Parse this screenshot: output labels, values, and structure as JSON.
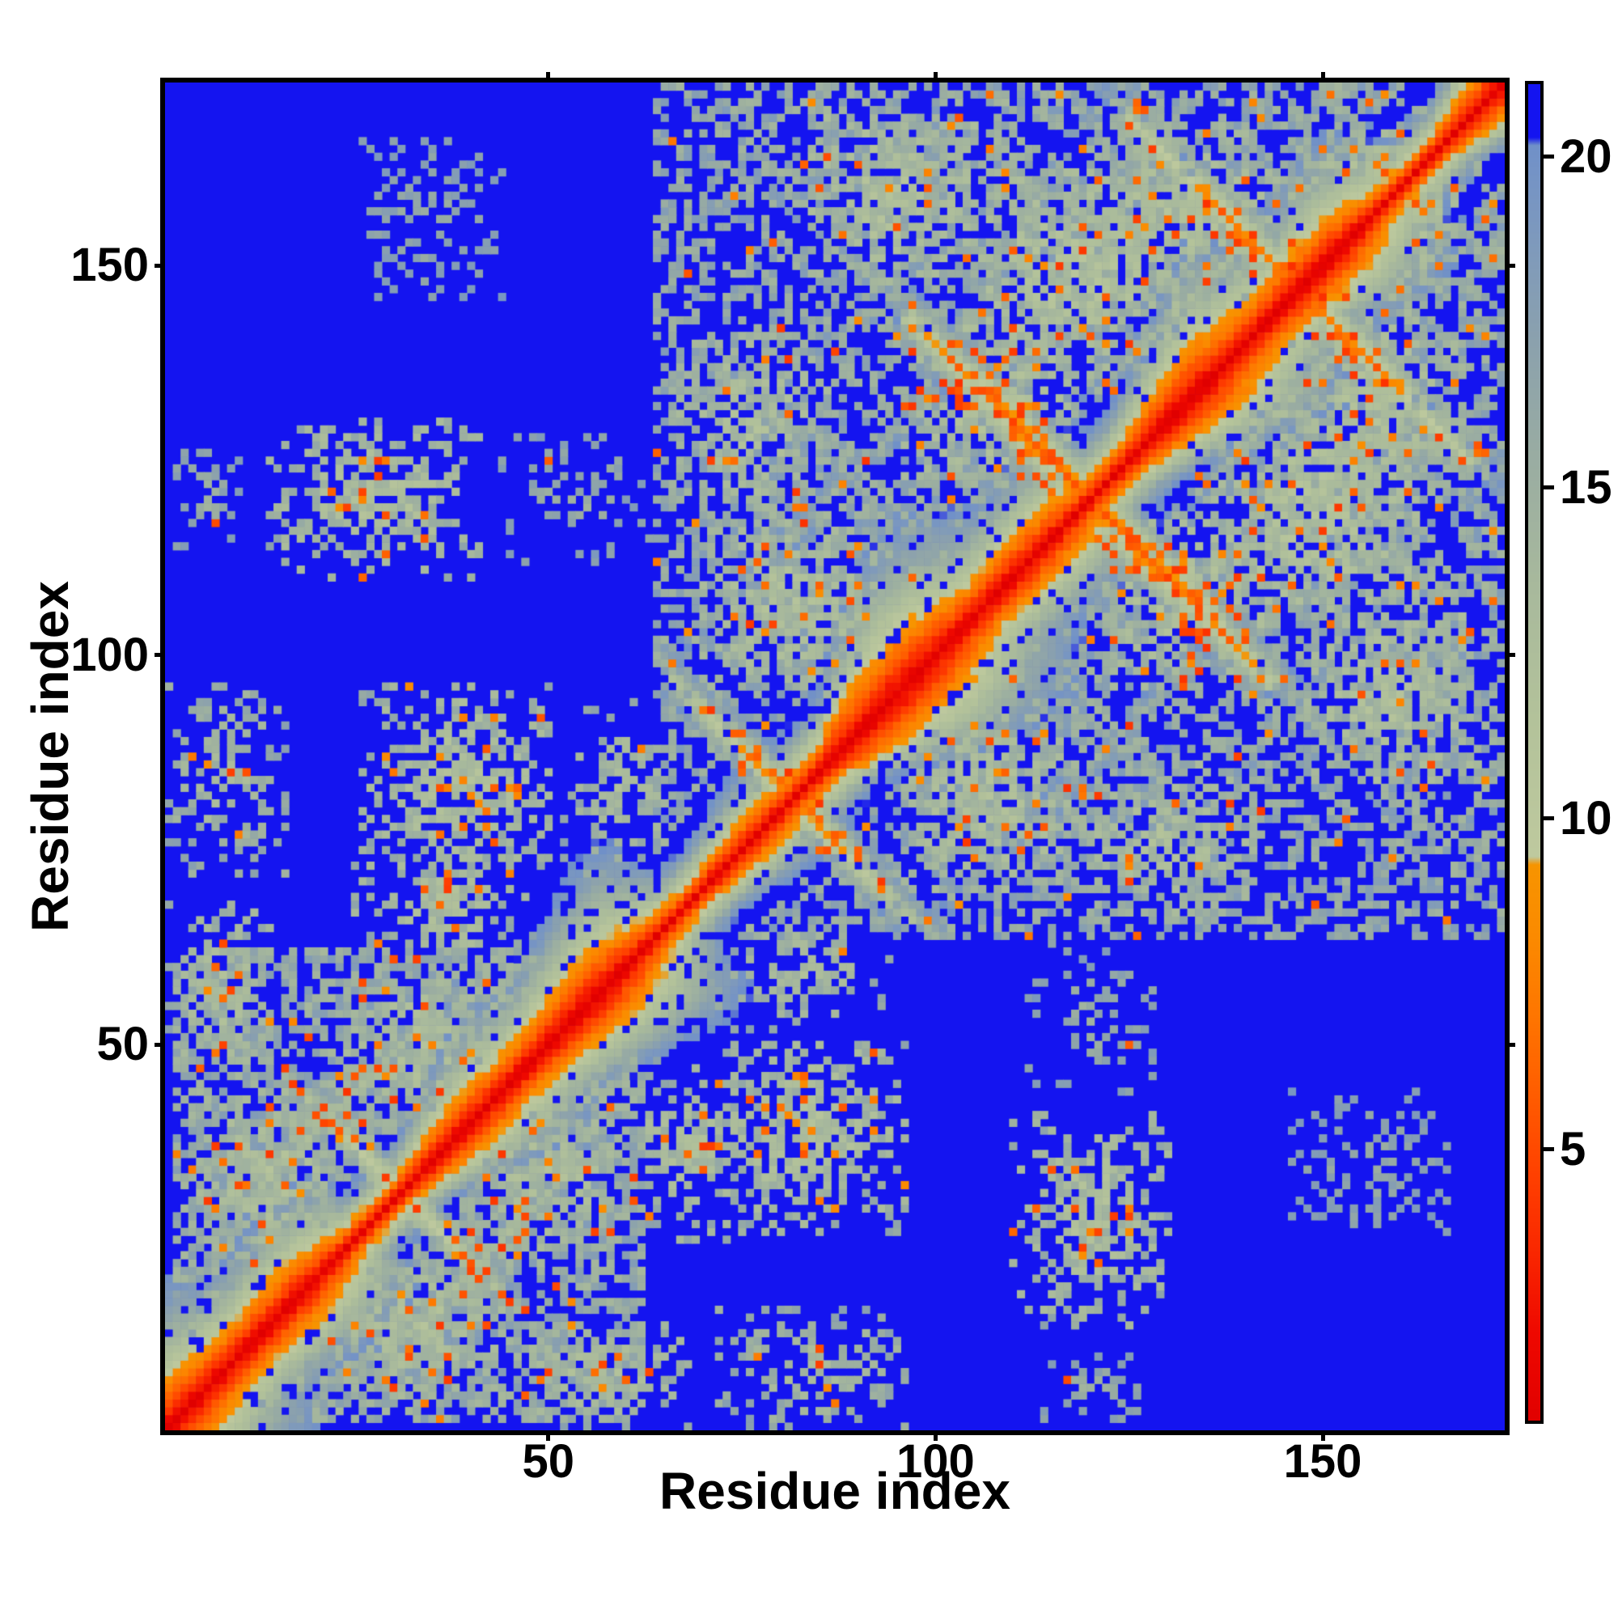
{
  "chart_data": {
    "type": "heatmap",
    "title": "",
    "xlabel": "Residue index",
    "ylabel": "Residue index",
    "description": "Symmetric residue-residue distance-matrix heat map with red diagonal (short distances), orange/green near-diagonal bands, speckled contact clusters and anti-diagonal (beta-sheet-like) streaks on a blue (long-distance) background.",
    "n_residues": 173,
    "x_range": [
      1,
      173
    ],
    "y_range": [
      1,
      173
    ],
    "x_ticks": [
      50,
      100,
      150
    ],
    "y_ticks": [
      50,
      100,
      150
    ],
    "grid": false,
    "colorbar": {
      "position": "right",
      "ticks": [
        5,
        10,
        15,
        20
      ],
      "vmin": 0.9,
      "vmax": 21.1
    },
    "colormap_stops": [
      [
        0.8,
        "#e00000"
      ],
      [
        2.2,
        "#ee0800"
      ],
      [
        3.4,
        "#f92600"
      ],
      [
        4.6,
        "#ff4000"
      ],
      [
        5.8,
        "#ff5c00"
      ],
      [
        7.0,
        "#fe7500"
      ],
      [
        8.2,
        "#fb8a00"
      ],
      [
        9.3,
        "#f79400"
      ],
      [
        9.42,
        "#bec99e"
      ],
      [
        11.5,
        "#b3c29a"
      ],
      [
        13.5,
        "#a8b99c"
      ],
      [
        15.5,
        "#99aca2"
      ],
      [
        17.2,
        "#8ba1ad"
      ],
      [
        18.6,
        "#7f9abb"
      ],
      [
        19.8,
        "#7493c6"
      ],
      [
        20.18,
        "#7090c8"
      ],
      [
        20.3,
        "#1414f0"
      ],
      [
        21.3,
        "#1414f0"
      ]
    ],
    "matrix_spec": {
      "background_value": 21.0,
      "seed": 1337,
      "diagonal_profile": [
        1.0,
        2.9,
        4.9,
        6.6,
        8.2,
        9.8,
        11.5,
        13.0,
        14.4,
        15.7,
        16.9,
        18.0,
        19.0,
        19.9,
        20.7
      ],
      "diagonal_hole_prob": 0.13,
      "features": [
        {
          "kind": "blob",
          "name": "domain1-fill",
          "i": [
            2,
            62
          ],
          "j": [
            2,
            62
          ],
          "base": 16.6,
          "spread": 2.4,
          "density": 0.34,
          "speckle": 0.035,
          "min_sep": 9
        },
        {
          "kind": "blob",
          "name": "domain2-fill",
          "i": [
            64,
            173
          ],
          "j": [
            64,
            173
          ],
          "base": 16.9,
          "spread": 2.2,
          "density": 0.27,
          "speckle": 0.03,
          "min_sep": 12
        },
        {
          "kind": "offdiag",
          "name": "d1-helix-pack",
          "offset": 19,
          "span": [
            6,
            38
          ],
          "width": 2,
          "base": 12.6,
          "gap": 0.25,
          "speckle": 0.09
        },
        {
          "kind": "antidiag",
          "name": "d1-sheet",
          "center": 62,
          "span": [
            16,
            46
          ],
          "width": 2,
          "base": 9.5,
          "gap": 0.2,
          "speckle": 0.08
        },
        {
          "kind": "blob",
          "i": [
            4,
            22
          ],
          "j": [
            24,
            44
          ],
          "base": 15.2,
          "spread": 2.0,
          "density": 0.55,
          "speckle": 0.05
        },
        {
          "kind": "blob",
          "i": [
            24,
            44
          ],
          "j": [
            40,
            60
          ],
          "base": 15.4,
          "spread": 2.0,
          "density": 0.5,
          "speckle": 0.05
        },
        {
          "kind": "blob",
          "i": [
            1,
            14
          ],
          "j": [
            46,
            68
          ],
          "base": 15.8,
          "spread": 2.0,
          "density": 0.45,
          "speckle": 0.04
        },
        {
          "kind": "blob",
          "i": [
            26,
            50
          ],
          "j": [
            72,
            96
          ],
          "base": 15.2,
          "spread": 2.1,
          "density": 0.5,
          "speckle": 0.06
        },
        {
          "kind": "blob",
          "i": [
            52,
            66
          ],
          "j": [
            72,
            94
          ],
          "base": 16.2,
          "spread": 2.0,
          "density": 0.35,
          "speckle": 0.03
        },
        {
          "kind": "blob",
          "i": [
            14,
            41
          ],
          "j": [
            110,
            130
          ],
          "base": 15.4,
          "spread": 2.1,
          "density": 0.5,
          "speckle": 0.05
        },
        {
          "kind": "blob",
          "i": [
            44,
            64
          ],
          "j": [
            112,
            128
          ],
          "base": 18.2,
          "spread": 1.4,
          "density": 0.25,
          "speckle": 0.01
        },
        {
          "kind": "blob",
          "i": [
            2,
            10
          ],
          "j": [
            114,
            126
          ],
          "base": 18.0,
          "spread": 1.4,
          "density": 0.25,
          "speckle": 0.01
        },
        {
          "kind": "blob",
          "i": [
            26,
            44
          ],
          "j": [
            146,
            166
          ],
          "base": 18.4,
          "spread": 1.2,
          "density": 0.3,
          "speckle": 0.0
        },
        {
          "kind": "blob",
          "i": [
            25,
            48
          ],
          "j": [
            60,
            76
          ],
          "base": 15.6,
          "spread": 2.0,
          "density": 0.4,
          "speckle": 0.04
        },
        {
          "kind": "blob",
          "i": [
            1,
            16
          ],
          "j": [
            72,
            96
          ],
          "base": 16.2,
          "spread": 1.8,
          "density": 0.35,
          "speckle": 0.03
        },
        {
          "kind": "antidiag",
          "center": 163,
          "span": [
            66,
            96
          ],
          "width": 3,
          "base": 8.5,
          "gap": 0.18,
          "speckle": 0.1
        },
        {
          "kind": "antidiag",
          "center": 240,
          "span": [
            96,
            144
          ],
          "width": 4,
          "base": 6.2,
          "gap": 0.12,
          "speckle": 0.12
        },
        {
          "kind": "antidiag",
          "center": 240,
          "span": [
            88,
            152
          ],
          "width": 8,
          "base": 13.5,
          "gap": 0.3,
          "speckle": 0.03
        },
        {
          "kind": "antidiag",
          "center": 294,
          "span": [
            124,
            170
          ],
          "width": 3,
          "base": 7.5,
          "gap": 0.15,
          "speckle": 0.1
        },
        {
          "kind": "antidiag",
          "center": 294,
          "span": [
            120,
            173
          ],
          "width": 6,
          "base": 13.8,
          "gap": 0.3,
          "speckle": 0.02
        },
        {
          "kind": "offdiag",
          "offset": 13,
          "span": [
            116,
            158
          ],
          "width": 2,
          "base": 13.5,
          "gap": 0.25,
          "speckle": 0.05
        },
        {
          "kind": "offdiag",
          "offset": 34,
          "span": [
            66,
            104
          ],
          "width": 3,
          "base": 14.5,
          "gap": 0.3,
          "speckle": 0.04
        },
        {
          "kind": "blob",
          "i": [
            84,
            104
          ],
          "j": [
            148,
            170
          ],
          "base": 15.0,
          "spread": 2.1,
          "density": 0.5,
          "speckle": 0.07
        },
        {
          "kind": "blob",
          "i": [
            104,
            132
          ],
          "j": [
            136,
            162
          ],
          "base": 14.8,
          "spread": 2.1,
          "density": 0.5,
          "speckle": 0.07
        },
        {
          "kind": "blob",
          "i": [
            66,
            86
          ],
          "j": [
            118,
            142
          ],
          "base": 15.5,
          "spread": 2.0,
          "density": 0.42,
          "speckle": 0.05
        },
        {
          "kind": "blob",
          "i": [
            92,
            116
          ],
          "j": [
            156,
            173
          ],
          "base": 16.0,
          "spread": 1.8,
          "density": 0.35,
          "speckle": 0.04
        },
        {
          "kind": "blob",
          "i": [
            70,
            92
          ],
          "j": [
            96,
            118
          ],
          "base": 15.2,
          "spread": 2.0,
          "density": 0.5,
          "speckle": 0.06
        },
        {
          "kind": "blob",
          "i": [
            96,
            118
          ],
          "j": [
            122,
            144
          ],
          "base": 15.0,
          "spread": 2.0,
          "density": 0.5,
          "speckle": 0.06
        },
        {
          "kind": "blob",
          "i": [
            120,
            144
          ],
          "j": [
            146,
            168
          ],
          "base": 15.2,
          "spread": 2.0,
          "density": 0.48,
          "speckle": 0.06
        },
        {
          "kind": "blob",
          "i": [
            146,
            166
          ],
          "j": [
            152,
            173
          ],
          "base": 15.6,
          "spread": 1.8,
          "density": 0.4,
          "speckle": 0.05
        }
      ]
    },
    "colors": {
      "background_blue": "#1414f0",
      "diagonal_red": "#e80000",
      "near_diagonal_orange": "#fb8a00",
      "contact_green": "#aebf9b",
      "halo_steel_blue": "#7493c6",
      "axis_black": "#000000",
      "page_white": "#ffffff"
    }
  }
}
